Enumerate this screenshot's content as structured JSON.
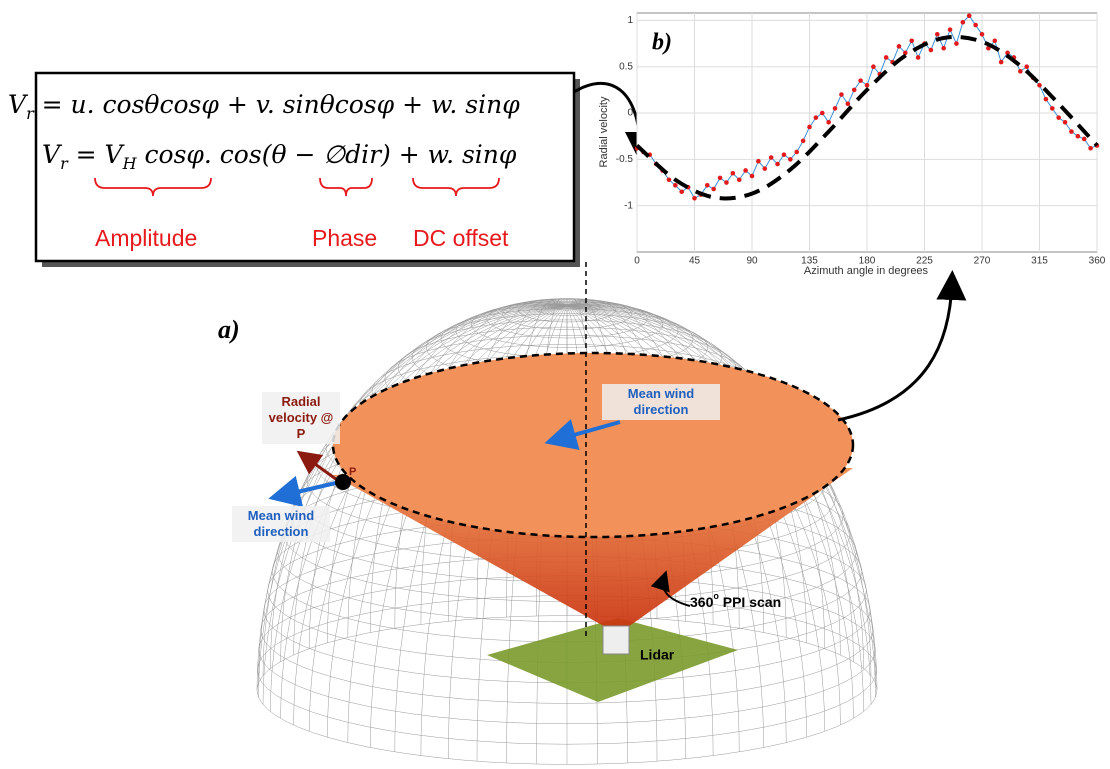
{
  "chart_data": {
    "type": "line",
    "x_label": "Azimuth angle in degrees",
    "y_label": "Radial velocity",
    "xlim": [
      0,
      360
    ],
    "xticks": [
      0,
      45,
      90,
      135,
      180,
      225,
      270,
      315,
      360
    ],
    "ylim": [
      -1.5,
      1.08
    ],
    "yticks": [
      -1,
      -0.5,
      0,
      0.5,
      1
    ],
    "grid": true,
    "series": [
      {
        "color": "#3a8fd6",
        "marker_color": "#e31a1c",
        "x": [
          0,
          5,
          10,
          15,
          20,
          25,
          30,
          35,
          40,
          45,
          50,
          55,
          60,
          65,
          70,
          75,
          80,
          85,
          90,
          95,
          100,
          105,
          110,
          115,
          120,
          125,
          130,
          135,
          140,
          145,
          150,
          155,
          160,
          165,
          170,
          175,
          180,
          185,
          190,
          195,
          200,
          205,
          210,
          215,
          220,
          225,
          230,
          235,
          240,
          245,
          250,
          255,
          260,
          265,
          270,
          275,
          280,
          285,
          290,
          295,
          300,
          305,
          310,
          315,
          320,
          325,
          330,
          335,
          340,
          345,
          350,
          355,
          360
        ],
        "values": [
          -0.38,
          -0.42,
          -0.45,
          -0.55,
          -0.62,
          -0.72,
          -0.78,
          -0.85,
          -0.8,
          -0.92,
          -0.88,
          -0.78,
          -0.82,
          -0.7,
          -0.75,
          -0.65,
          -0.72,
          -0.62,
          -0.68,
          -0.52,
          -0.6,
          -0.48,
          -0.55,
          -0.45,
          -0.5,
          -0.42,
          -0.3,
          -0.15,
          -0.05,
          0,
          -0.1,
          0.05,
          0.2,
          0.1,
          0.25,
          0.35,
          0.3,
          0.5,
          0.42,
          0.6,
          0.55,
          0.72,
          0.65,
          0.78,
          0.6,
          0.75,
          0.68,
          0.85,
          0.7,
          0.9,
          0.75,
          0.98,
          1.05,
          0.95,
          0.85,
          0.7,
          0.78,
          0.55,
          0.65,
          0.6,
          0.45,
          0.5,
          0.38,
          0.3,
          0.15,
          0.05,
          -0.05,
          -0.1,
          -0.2,
          -0.25,
          -0.28,
          -0.38,
          -0.35
        ]
      },
      {
        "color": "#000000",
        "dashed": true,
        "x": [
          0,
          30,
          60,
          90,
          120,
          150,
          180,
          210,
          240,
          270,
          300,
          330,
          360
        ],
        "values": [
          -0.35,
          -0.72,
          -0.91,
          -0.87,
          -0.61,
          -0.2,
          0.25,
          0.62,
          0.81,
          0.77,
          0.51,
          0.1,
          -0.35
        ]
      }
    ]
  },
  "diagram": {
    "panel_a": "a)",
    "panel_b": "b)",
    "equation_1": [
      "V",
      "r",
      " = u. cosθcosφ + v. sinθcosφ + w. sinφ"
    ],
    "equation_2": [
      "V",
      "r",
      " = V",
      "H",
      " cosφ. cos(θ − ∅dir) + w. sinφ"
    ],
    "amplitude": "Amplitude",
    "phase": "Phase",
    "dc_offset": "DC offset",
    "mean_wind": [
      "Mean wind direction",
      "Mean wind direction"
    ],
    "radial": "Radial velocity @ P",
    "point": "P",
    "scan": [
      "360",
      "o",
      " PPI scan"
    ],
    "lidar": "Lidar"
  }
}
